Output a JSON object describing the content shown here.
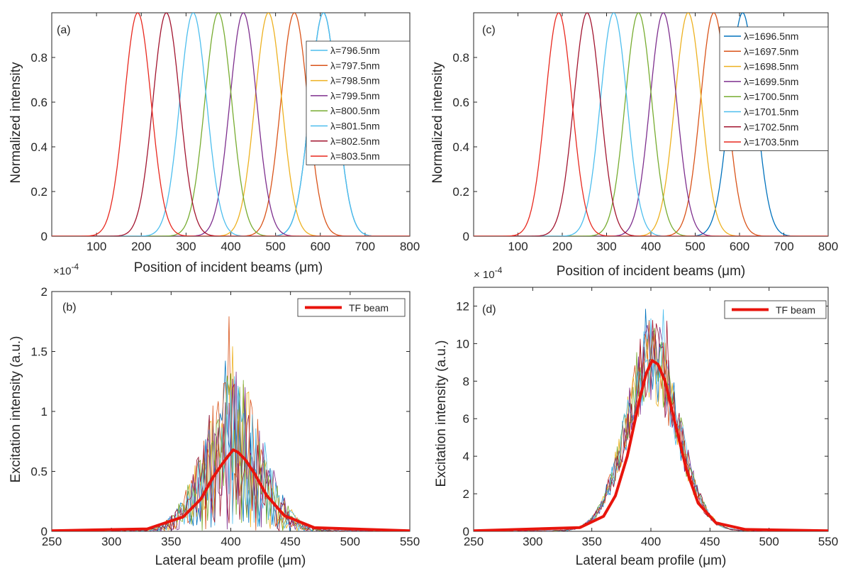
{
  "colors": {
    "c1": "#0072BD",
    "c2": "#D95319",
    "c3": "#EDB120",
    "c4": "#7E2F8E",
    "c5": "#77AC30",
    "c6": "#4DBEEE",
    "c7": "#A2142F",
    "c8": "#E8281E",
    "tf": "#E8140C",
    "axis": "#262626"
  },
  "chart_data": [
    {
      "panel": "a",
      "tag": "(a)",
      "type": "line",
      "xlabel": "Position of incident beams (μm)",
      "ylabel": "Normalized intensity",
      "xlim": [
        0,
        800
      ],
      "ylim": [
        0,
        1
      ],
      "xticks": [
        100,
        200,
        300,
        400,
        500,
        600,
        700,
        800
      ],
      "yticks": [
        0,
        0.2,
        0.4,
        0.6,
        0.8
      ],
      "ytick_labels": [
        "0",
        "0.2",
        "0.4",
        "0.6",
        "0.8"
      ],
      "legend_position": "top-right",
      "series": [
        {
          "name": "λ=796.5nm",
          "color": "c6",
          "center": 607,
          "sigma": 30,
          "amplitude": 1
        },
        {
          "name": "λ=797.5nm",
          "color": "c2",
          "center": 542,
          "sigma": 30,
          "amplitude": 1
        },
        {
          "name": "λ=798.5nm",
          "color": "c3",
          "center": 484,
          "sigma": 30,
          "amplitude": 1
        },
        {
          "name": "λ=799.5nm",
          "color": "c4",
          "center": 428,
          "sigma": 30,
          "amplitude": 1
        },
        {
          "name": "λ=800.5nm",
          "color": "c5",
          "center": 372,
          "sigma": 30,
          "amplitude": 1
        },
        {
          "name": "λ=801.5nm",
          "color": "c6",
          "center": 316,
          "sigma": 30,
          "amplitude": 1
        },
        {
          "name": "λ=802.5nm",
          "color": "c7",
          "center": 256,
          "sigma": 30,
          "amplitude": 1
        },
        {
          "name": "λ=803.5nm",
          "color": "c8",
          "center": 192,
          "sigma": 30,
          "amplitude": 1
        }
      ],
      "extra_curves": [
        {
          "color": "c1",
          "center": 607,
          "sigma": 30,
          "amplitude": 1
        }
      ]
    },
    {
      "panel": "b",
      "tag": "(b)",
      "type": "line",
      "xlabel": "Lateral beam profile (μm)",
      "ylabel": "Excitation intensity (a.u.)",
      "multiplier": "×10",
      "multiplier_exp": "-4",
      "xlim": [
        250,
        550
      ],
      "ylim": [
        0,
        2
      ],
      "xticks": [
        250,
        300,
        350,
        400,
        450,
        500,
        550
      ],
      "yticks": [
        0,
        0.5,
        1,
        1.5,
        2
      ],
      "ytick_labels": [
        "0",
        "0.5",
        "1",
        "1.5",
        "2"
      ],
      "legend_position": "top-right",
      "tf_series": {
        "name": "TF beam",
        "color": "tf",
        "center": 402,
        "sigma": 22,
        "amplitude": 0.68,
        "x": [
          250,
          330,
          360,
          375,
          385,
          392,
          398,
          402,
          406,
          412,
          420,
          430,
          445,
          470,
          550
        ],
        "y": [
          0.005,
          0.02,
          0.12,
          0.27,
          0.45,
          0.55,
          0.63,
          0.68,
          0.66,
          0.6,
          0.48,
          0.3,
          0.13,
          0.03,
          0.005
        ]
      },
      "noisy_peaks": [
        1.42,
        1.79,
        1.54,
        1.33,
        1.2,
        0.98,
        0.88
      ]
    },
    {
      "panel": "c",
      "tag": "(c)",
      "type": "line",
      "xlabel": "Position of incident beams (μm)",
      "ylabel": "Normalized intensity",
      "xlim": [
        0,
        800
      ],
      "ylim": [
        0,
        1
      ],
      "xticks": [
        100,
        200,
        300,
        400,
        500,
        600,
        700,
        800
      ],
      "yticks": [
        0,
        0.2,
        0.4,
        0.6,
        0.8
      ],
      "ytick_labels": [
        "0",
        "0.2",
        "0.4",
        "0.6",
        "0.8"
      ],
      "legend_position": "top-right",
      "series": [
        {
          "name": "λ=1696.5nm",
          "color": "c1",
          "center": 607,
          "sigma": 30,
          "amplitude": 1
        },
        {
          "name": "λ=1697.5nm",
          "color": "c2",
          "center": 542,
          "sigma": 30,
          "amplitude": 1
        },
        {
          "name": "λ=1698.5nm",
          "color": "c3",
          "center": 484,
          "sigma": 30,
          "amplitude": 1
        },
        {
          "name": "λ=1699.5nm",
          "color": "c4",
          "center": 428,
          "sigma": 30,
          "amplitude": 1
        },
        {
          "name": "λ=1700.5nm",
          "color": "c5",
          "center": 372,
          "sigma": 30,
          "amplitude": 1
        },
        {
          "name": "λ=1701.5nm",
          "color": "c6",
          "center": 316,
          "sigma": 30,
          "amplitude": 1
        },
        {
          "name": "λ=1702.5nm",
          "color": "c7",
          "center": 256,
          "sigma": 30,
          "amplitude": 1
        },
        {
          "name": "λ=1703.5nm",
          "color": "c8",
          "center": 192,
          "sigma": 30,
          "amplitude": 1
        }
      ],
      "extra_curves": []
    },
    {
      "panel": "d",
      "tag": "(d)",
      "type": "line",
      "xlabel": "Lateral beam profile (μm)",
      "ylabel": "Excitation intensity (a.u.)",
      "multiplier": "× 10",
      "multiplier_exp": "-4",
      "xlim": [
        250,
        550
      ],
      "ylim": [
        0,
        13
      ],
      "xticks": [
        250,
        300,
        350,
        400,
        450,
        500,
        550
      ],
      "yticks": [
        0,
        2,
        4,
        6,
        8,
        10,
        12
      ],
      "ytick_labels": [
        "0",
        "2",
        "4",
        "6",
        "8",
        "10",
        "12"
      ],
      "legend_position": "top-right",
      "tf_series": {
        "name": "TF beam",
        "color": "tf",
        "center": 401,
        "sigma": 20,
        "amplitude": 9.1,
        "x": [
          250,
          340,
          360,
          370,
          380,
          390,
          396,
          401,
          406,
          412,
          420,
          430,
          440,
          455,
          480,
          550
        ],
        "y": [
          0.03,
          0.2,
          0.8,
          1.9,
          4.0,
          6.9,
          8.4,
          9.1,
          8.9,
          8.0,
          5.9,
          3.3,
          1.5,
          0.45,
          0.1,
          0.03
        ]
      },
      "noisy_peaks": [
        11.8,
        11.2,
        10.4,
        10.0,
        9.5
      ]
    }
  ]
}
